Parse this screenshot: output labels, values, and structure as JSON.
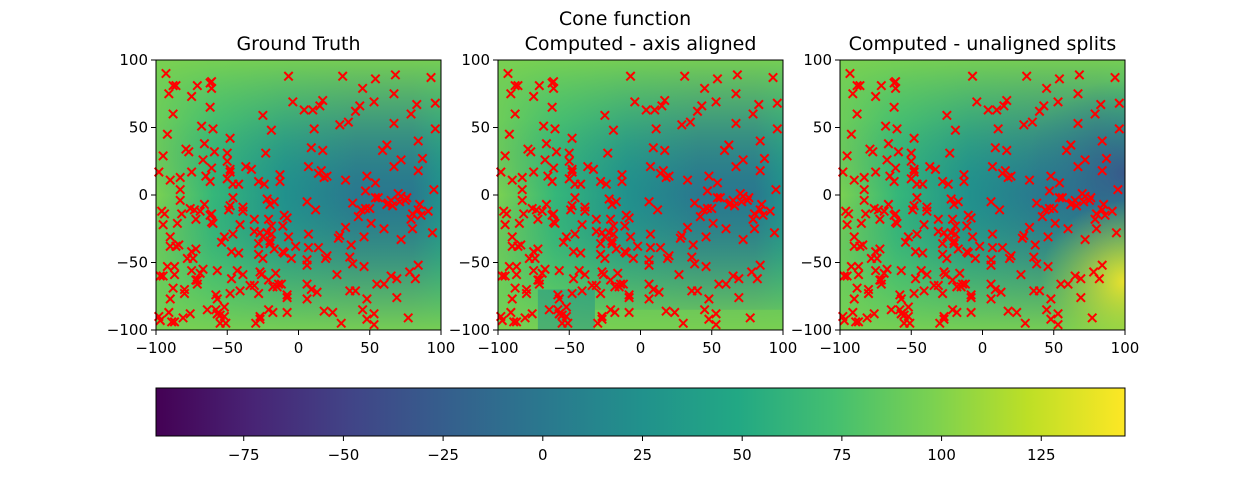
{
  "chart_data": {
    "type": "heatmap",
    "title": "Cone function",
    "panels": [
      {
        "title": "Ground Truth"
      },
      {
        "title": "Computed - axis aligned"
      },
      {
        "title": "Computed - unaligned splits"
      }
    ],
    "xlim": [
      -100,
      100
    ],
    "ylim": [
      -100,
      100
    ],
    "x_ticks": [
      -100,
      -50,
      0,
      50,
      100
    ],
    "y_ticks": [
      -100,
      -50,
      0,
      50,
      100
    ],
    "x_tick_labels": [
      "−100",
      "−50",
      "0",
      "50",
      "100"
    ],
    "y_tick_labels": [
      "−100",
      "−50",
      "0",
      "50",
      "100"
    ],
    "colormap": "viridis",
    "colorbar": {
      "range": [
        -97,
        146
      ],
      "ticks": [
        -75,
        -50,
        -25,
        0,
        25,
        50,
        75,
        100,
        125
      ],
      "tick_labels": [
        "−75",
        "−50",
        "−25",
        "0",
        "25",
        "50",
        "75",
        "100",
        "125"
      ]
    },
    "marker": {
      "symbol": "x",
      "color": "#ff0000"
    },
    "sample_points": [
      [
        -91,
        75
      ],
      [
        -61,
        79
      ],
      [
        -75,
        17
      ],
      [
        -42,
        8
      ],
      [
        -67,
        26
      ],
      [
        -77,
        32
      ],
      [
        -27,
        -57
      ],
      [
        14,
        16
      ],
      [
        -58,
        -74
      ],
      [
        -20,
        -36
      ],
      [
        28,
        -32
      ],
      [
        -96,
        -12
      ],
      [
        -69,
        -12
      ],
      [
        56,
        -2
      ],
      [
        71,
        -5
      ],
      [
        20,
        -45
      ],
      [
        29,
        52
      ],
      [
        10,
        63
      ],
      [
        -62,
        65
      ],
      [
        -52,
        -90
      ],
      [
        48,
        -77
      ],
      [
        11,
        49
      ],
      [
        -60,
        -21
      ],
      [
        17,
        70
      ],
      [
        72,
        -33
      ],
      [
        -27,
        -92
      ],
      [
        -80,
        -73
      ],
      [
        -19,
        48
      ],
      [
        6,
        -77
      ],
      [
        15,
        66
      ],
      [
        67,
        53
      ],
      [
        53,
        -96
      ],
      [
        -60,
        49
      ],
      [
        -67,
        -55
      ],
      [
        -31,
        -67
      ],
      [
        -82,
        -14
      ],
      [
        -88,
        60
      ],
      [
        -71,
        -63
      ],
      [
        46,
        -31
      ],
      [
        94,
        -28
      ],
      [
        -11,
        -23
      ],
      [
        -39,
        -12
      ],
      [
        95,
        4
      ],
      [
        91,
        -12
      ],
      [
        67,
        75
      ],
      [
        -86,
        -38
      ],
      [
        54,
        86
      ],
      [
        9,
        35
      ],
      [
        -72,
        -40
      ],
      [
        -7,
        -31
      ],
      [
        40,
        62
      ],
      [
        -49,
        -11
      ],
      [
        33,
        -24
      ],
      [
        86,
        -15
      ],
      [
        -16,
        -58
      ],
      [
        -73,
        -11
      ],
      [
        -65,
        14
      ],
      [
        84,
        18
      ],
      [
        82,
        -62
      ],
      [
        -57,
        -77
      ],
      [
        48,
        14
      ],
      [
        -72,
        -18
      ],
      [
        79,
        -18
      ],
      [
        38,
        -51
      ],
      [
        -23,
        31
      ],
      [
        42,
        -16
      ],
      [
        -61,
        -14
      ],
      [
        36,
        -71
      ],
      [
        -46,
        8
      ],
      [
        -20,
        -7
      ],
      [
        -17,
        -40
      ],
      [
        51,
        -21
      ],
      [
        -66,
        -7
      ],
      [
        -5,
        -47
      ],
      [
        62,
        -7
      ],
      [
        -92,
        -53
      ],
      [
        -48,
        -8
      ],
      [
        68,
        89
      ],
      [
        -83,
        4
      ],
      [
        16,
        18
      ],
      [
        -98,
        -90
      ],
      [
        84,
        40
      ],
      [
        80,
        -14
      ],
      [
        -52,
        -83
      ],
      [
        -62,
        10
      ],
      [
        -48,
        -73
      ],
      [
        78,
        -57
      ],
      [
        46,
        -53
      ],
      [
        43,
        66
      ],
      [
        -81,
        -91
      ],
      [
        62,
        37
      ],
      [
        -79,
        34
      ],
      [
        60,
        -66
      ],
      [
        72,
        26
      ],
      [
        -83,
        13
      ],
      [
        -39,
        -59
      ],
      [
        -98,
        17
      ],
      [
        -97,
        -93
      ],
      [
        -92,
        45
      ],
      [
        -26,
        -59
      ],
      [
        -90,
        11
      ],
      [
        29,
        -30
      ],
      [
        -25,
        59
      ],
      [
        -48,
        42
      ],
      [
        -57,
        -56
      ],
      [
        -18,
        -87
      ],
      [
        -90,
        -38
      ],
      [
        -68,
        51
      ],
      [
        -15,
        -68
      ],
      [
        54,
        -2
      ],
      [
        31,
        88
      ],
      [
        -76,
        -10
      ],
      [
        24,
        -87
      ],
      [
        72,
        -1
      ],
      [
        85,
        -7
      ],
      [
        -7,
        88
      ],
      [
        -75,
        73
      ],
      [
        79,
        60
      ],
      [
        -50,
        31
      ],
      [
        -61,
        84
      ],
      [
        6,
        -48
      ],
      [
        45,
        79
      ],
      [
        6,
        -5
      ],
      [
        -64,
        -85
      ],
      [
        -13,
        10
      ],
      [
        84,
        -11
      ],
      [
        -55,
        -89
      ],
      [
        65,
        -60
      ],
      [
        14,
        -39
      ],
      [
        -62,
        -15
      ],
      [
        4,
        63
      ],
      [
        -95,
        -60
      ],
      [
        35,
        54
      ],
      [
        -19,
        -23
      ],
      [
        -69,
        -58
      ],
      [
        -91,
        -87
      ],
      [
        -61,
        20
      ],
      [
        63,
        -6
      ],
      [
        -75,
        -42
      ],
      [
        -88,
        -69
      ],
      [
        -22,
        -28
      ],
      [
        53,
        -88
      ],
      [
        -83,
        -4
      ],
      [
        -74,
        -47
      ],
      [
        -41,
        -71
      ],
      [
        -8,
        -76
      ],
      [
        -28,
        -44
      ],
      [
        -62,
        83
      ],
      [
        7,
        -29
      ],
      [
        17,
        33
      ],
      [
        -61,
        -20
      ],
      [
        9,
        -70
      ],
      [
        65,
        -4
      ],
      [
        -72,
        -63
      ],
      [
        -27,
        -90
      ],
      [
        -31,
        -18
      ],
      [
        -95,
        29
      ],
      [
        66,
        -8
      ],
      [
        -93,
        90
      ],
      [
        80,
        -25
      ],
      [
        27,
        -59
      ],
      [
        -30,
        -95
      ],
      [
        -47,
        -42
      ],
      [
        -4,
        69
      ],
      [
        -18,
        -68
      ],
      [
        -2,
        -38
      ],
      [
        -28,
        -36
      ],
      [
        12,
        -11
      ],
      [
        -11,
        -42
      ],
      [
        -25,
        -47
      ],
      [
        -66,
        38
      ],
      [
        -88,
        81
      ],
      [
        -90,
        -77
      ],
      [
        18,
        -86
      ],
      [
        -37,
        21
      ],
      [
        -52,
        -31
      ],
      [
        19,
        -47
      ],
      [
        96,
        49
      ],
      [
        -57,
        -88
      ],
      [
        69,
        -62
      ],
      [
        -41,
        -22
      ],
      [
        -48,
        17
      ],
      [
        96,
        68
      ],
      [
        -51,
        -95
      ],
      [
        -33,
        19
      ],
      [
        -22,
        -3
      ],
      [
        69,
        -76
      ],
      [
        -86,
        81
      ],
      [
        50,
        -10
      ],
      [
        6,
        -66
      ],
      [
        76,
        -2
      ],
      [
        44,
        -11
      ],
      [
        -57,
        -88
      ],
      [
        84,
        -52
      ],
      [
        -71,
        -66
      ],
      [
        -71,
        81
      ],
      [
        47,
        -10
      ],
      [
        -80,
        -70
      ],
      [
        -19,
        -29
      ],
      [
        -12,
        -66
      ],
      [
        -58,
        -85
      ],
      [
        -50,
        12
      ],
      [
        -27,
        -28
      ],
      [
        55,
        -66
      ],
      [
        -10,
        -43
      ],
      [
        67,
        21
      ],
      [
        -21,
        -63
      ],
      [
        -39,
        -9
      ],
      [
        -24,
        8
      ],
      [
        -21,
        -18
      ],
      [
        48,
        -92
      ],
      [
        83,
        67
      ],
      [
        -21,
        -85
      ],
      [
        -8,
        -17
      ],
      [
        13,
        -72
      ],
      [
        40,
        -71
      ],
      [
        47,
        3
      ],
      [
        -59,
        32
      ],
      [
        20,
        14
      ],
      [
        -47,
        -62
      ],
      [
        54,
        9
      ],
      [
        -20,
        -34
      ],
      [
        38,
        -6
      ],
      [
        -8,
        -87
      ],
      [
        75,
        -4
      ],
      [
        -10,
        -15
      ],
      [
        -78,
        -47
      ],
      [
        -87,
        -94
      ],
      [
        -75,
        -56
      ],
      [
        18,
        13
      ],
      [
        -8,
        -74
      ],
      [
        -76,
        -88
      ],
      [
        -94,
        -14
      ],
      [
        87,
        27
      ],
      [
        93,
        87
      ],
      [
        -55,
        -95
      ],
      [
        60,
        -25
      ],
      [
        37,
        -37
      ],
      [
        -46,
        -2
      ],
      [
        -46,
        -29
      ],
      [
        -87,
        -59
      ],
      [
        -42,
        -43
      ],
      [
        59,
        33
      ],
      [
        30,
        -95
      ],
      [
        -28,
        -73
      ],
      [
        -13,
        15
      ],
      [
        -48,
        19
      ],
      [
        45,
        -85
      ],
      [
        36,
        -46
      ],
      [
        -84,
        -37
      ],
      [
        -97,
        -60
      ],
      [
        -31,
        -27
      ],
      [
        33,
        11
      ],
      [
        -14,
        -66
      ],
      [
        77,
        -91
      ],
      [
        -50,
        25
      ],
      [
        -85,
        -21
      ],
      [
        7,
        -39
      ],
      [
        -54,
        -35
      ],
      [
        53,
        69
      ],
      [
        -17,
        -5
      ],
      [
        -34,
        -67
      ],
      [
        -89,
        -94
      ],
      [
        6,
        -52
      ],
      [
        -87,
        -53
      ],
      [
        -95,
        -22
      ],
      [
        -90,
        -31
      ],
      [
        -43,
        -56
      ],
      [
        7,
        21
      ],
      [
        -25,
        -31
      ],
      [
        -28,
        10
      ],
      [
        70,
        1
      ]
    ]
  }
}
